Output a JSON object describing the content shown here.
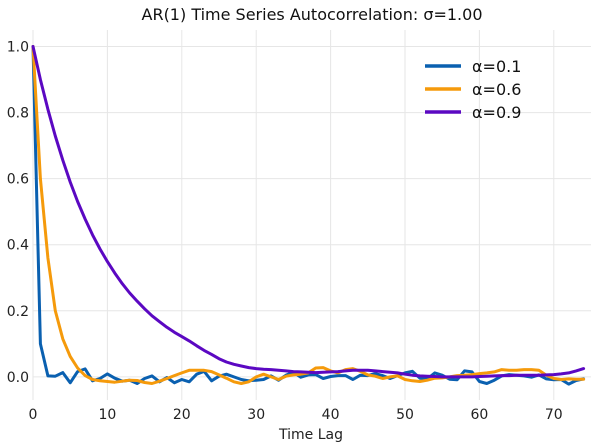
{
  "chart_data": {
    "type": "line",
    "title": "AR(1) Time Series Autocorrelation: σ=1.00",
    "xlabel": "Time Lag",
    "ylabel": "",
    "xlim": [
      0,
      75
    ],
    "ylim": [
      -0.07,
      1.05
    ],
    "xticks": [
      0,
      10,
      20,
      30,
      40,
      50,
      60,
      70
    ],
    "yticks": [
      0.0,
      0.2,
      0.4,
      0.6,
      0.8,
      1.0
    ],
    "ytick_labels": [
      "0.0",
      "0.2",
      "0.4",
      "0.6",
      "0.8",
      "1.0"
    ],
    "grid": true,
    "legend_position": "top-right",
    "series": [
      {
        "name": "α=0.1",
        "color": "#0a60b0",
        "values": [
          1.0,
          0.1,
          0.003,
          0.002,
          0.013,
          -0.018,
          0.016,
          0.024,
          -0.012,
          -0.005,
          0.009,
          -0.004,
          -0.013,
          -0.01,
          -0.02,
          -0.005,
          0.003,
          -0.015,
          -0.002,
          -0.018,
          -0.008,
          -0.015,
          0.008,
          0.017,
          -0.012,
          0.002,
          0.008,
          0.0,
          -0.008,
          -0.012,
          -0.01,
          -0.008,
          0.003,
          -0.01,
          0.005,
          0.014,
          -0.001,
          0.006,
          0.007,
          -0.005,
          0.001,
          0.004,
          0.004,
          -0.008,
          0.005,
          0.004,
          0.01,
          0.004,
          -0.005,
          0.004,
          0.012,
          0.017,
          -0.004,
          -0.006,
          0.012,
          0.005,
          -0.007,
          -0.009,
          0.018,
          0.015,
          -0.014,
          -0.02,
          -0.01,
          0.003,
          0.007,
          0.005,
          0.003,
          -0.001,
          0.006,
          -0.006,
          -0.009,
          -0.008,
          -0.022,
          -0.011,
          -0.006
        ]
      },
      {
        "name": "α=0.6",
        "color": "#f59a0b",
        "values": [
          1.0,
          0.6,
          0.36,
          0.2,
          0.115,
          0.062,
          0.027,
          0.004,
          -0.008,
          -0.012,
          -0.014,
          -0.016,
          -0.013,
          -0.01,
          -0.011,
          -0.017,
          -0.02,
          -0.013,
          -0.005,
          0.004,
          0.012,
          0.02,
          0.02,
          0.02,
          0.016,
          0.006,
          -0.004,
          -0.015,
          -0.02,
          -0.015,
          0.0,
          0.008,
          0.0,
          -0.008,
          0.002,
          0.006,
          0.008,
          0.012,
          0.027,
          0.028,
          0.018,
          0.012,
          0.022,
          0.025,
          0.017,
          0.006,
          0.002,
          -0.005,
          0.0,
          0.003,
          -0.008,
          -0.012,
          -0.014,
          -0.01,
          -0.004,
          -0.003,
          0.0,
          0.004,
          0.005,
          0.007,
          0.01,
          0.012,
          0.015,
          0.022,
          0.02,
          0.02,
          0.022,
          0.022,
          0.02,
          0.005,
          -0.005,
          -0.008,
          -0.006,
          -0.007,
          -0.007
        ]
      },
      {
        "name": "α=0.9",
        "color": "#5b08c2",
        "values": [
          1.0,
          0.9,
          0.81,
          0.729,
          0.656,
          0.59,
          0.531,
          0.478,
          0.43,
          0.387,
          0.349,
          0.314,
          0.282,
          0.254,
          0.229,
          0.206,
          0.185,
          0.167,
          0.15,
          0.135,
          0.122,
          0.109,
          0.094,
          0.08,
          0.068,
          0.055,
          0.045,
          0.038,
          0.033,
          0.028,
          0.025,
          0.023,
          0.022,
          0.02,
          0.018,
          0.016,
          0.015,
          0.014,
          0.013,
          0.014,
          0.015,
          0.016,
          0.018,
          0.02,
          0.02,
          0.02,
          0.018,
          0.016,
          0.014,
          0.012,
          0.008,
          0.005,
          0.003,
          0.002,
          0.001,
          0.0,
          0.0,
          0.0,
          0.0,
          0.0,
          0.001,
          0.002,
          0.003,
          0.004,
          0.004,
          0.005,
          0.005,
          0.005,
          0.005,
          0.006,
          0.007,
          0.009,
          0.012,
          0.018,
          0.025
        ]
      }
    ]
  }
}
